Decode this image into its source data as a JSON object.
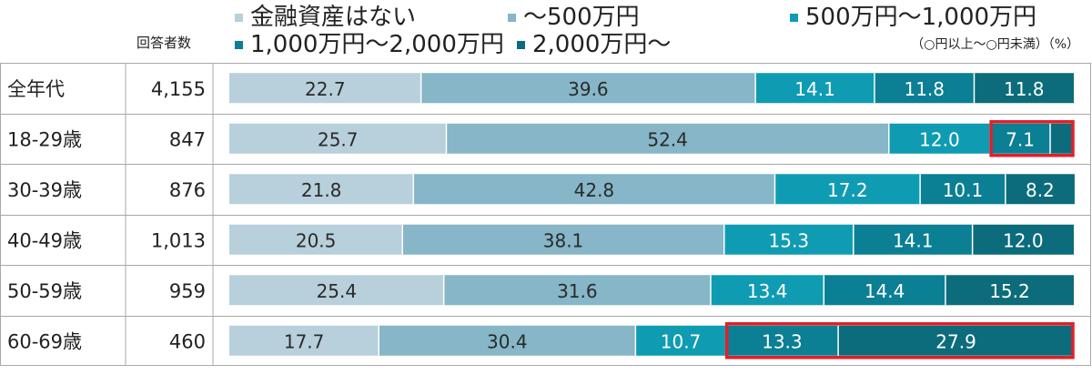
{
  "header": {
    "n_label": "回答者数",
    "unit_note": "（○円以上～○円未満）（%）"
  },
  "chart_data": {
    "type": "bar",
    "orientation": "horizontal",
    "stacked": true,
    "title": "",
    "xlabel": "",
    "ylabel": "",
    "xlim": [
      0,
      100
    ],
    "legend_position": "top",
    "categories": [
      "全年代",
      "18-29歳",
      "30-39歳",
      "40-49歳",
      "50-59歳",
      "60-69歳"
    ],
    "respondents": [
      "4,155",
      "847",
      "876",
      "1,013",
      "959",
      "460"
    ],
    "series": [
      {
        "name": "金融資産はない",
        "color": "#b8d0db",
        "values": [
          22.7,
          25.7,
          21.8,
          20.5,
          25.4,
          17.7
        ]
      },
      {
        "name": "～500万円",
        "color": "#86b6c7",
        "values": [
          39.6,
          52.4,
          42.8,
          38.1,
          31.6,
          30.4
        ]
      },
      {
        "name": "500万円～1,000万円",
        "color": "#0f9cb3",
        "values": [
          14.1,
          12.0,
          17.2,
          15.3,
          13.4,
          10.7
        ]
      },
      {
        "name": "1,000万円～2,000万円",
        "color": "#0b7f94",
        "values": [
          11.8,
          7.1,
          10.1,
          14.1,
          14.4,
          13.3
        ]
      },
      {
        "name": "2,000万円～",
        "color": "#0c6c7b",
        "values": [
          11.8,
          2.8,
          8.2,
          12.0,
          15.2,
          27.9
        ]
      }
    ],
    "labels": [
      [
        "22.7",
        "39.6",
        "14.1",
        "11.8",
        "11.8"
      ],
      [
        "25.7",
        "52.4",
        "12.0",
        "7.1",
        ""
      ],
      [
        "21.8",
        "42.8",
        "17.2",
        "10.1",
        "8.2"
      ],
      [
        "20.5",
        "38.1",
        "15.3",
        "14.1",
        "12.0"
      ],
      [
        "25.4",
        "31.6",
        "13.4",
        "14.4",
        "15.2"
      ],
      [
        "17.7",
        "30.4",
        "10.7",
        "13.3",
        "27.9"
      ]
    ],
    "highlight_color": "#e0202a",
    "highlights": [
      {
        "row": 1,
        "from_series": 3,
        "to_series": 4
      },
      {
        "row": 5,
        "from_series": 3,
        "to_series": 4
      }
    ]
  }
}
